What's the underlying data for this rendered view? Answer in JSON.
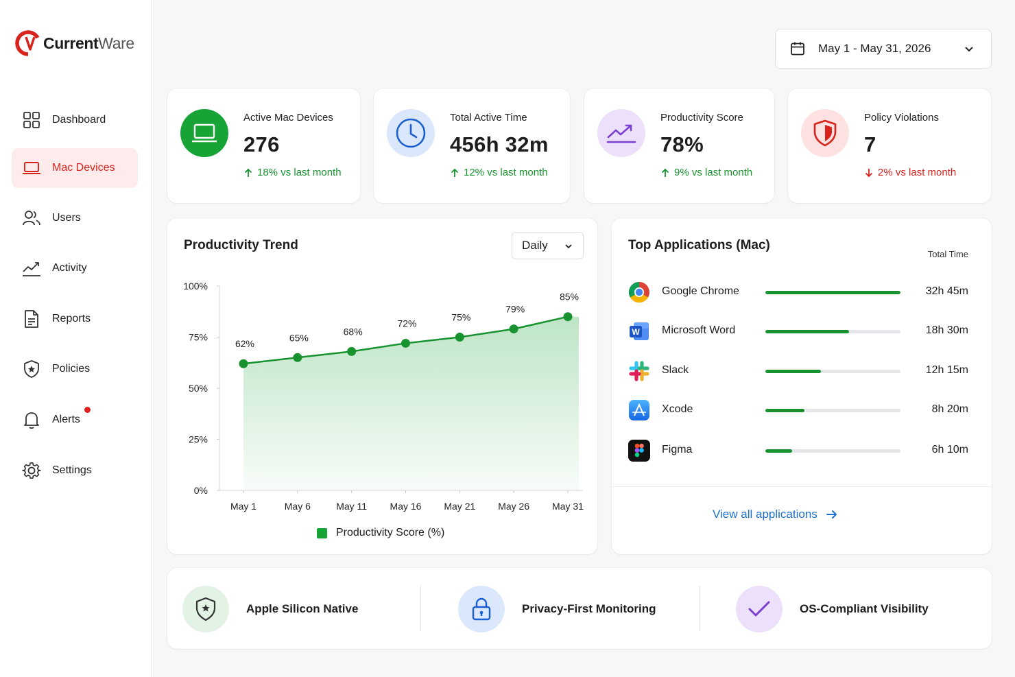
{
  "brand": {
    "name_part1": "Current",
    "name_part2": "Ware",
    "accent": "#d8231c"
  },
  "sidebar": {
    "items": [
      {
        "label": "Dashboard",
        "icon": "grid-icon"
      },
      {
        "label": "Mac Devices",
        "icon": "laptop-icon",
        "active": true
      },
      {
        "label": "Users",
        "icon": "users-icon"
      },
      {
        "label": "Activity",
        "icon": "activity-icon"
      },
      {
        "label": "Reports",
        "icon": "document-icon"
      },
      {
        "label": "Policies",
        "icon": "shield-icon"
      },
      {
        "label": "Alerts",
        "icon": "bell-icon",
        "has_dot": true
      },
      {
        "label": "Settings",
        "icon": "gear-icon"
      }
    ]
  },
  "date_range": {
    "label": "May 1 - May 31, 2026",
    "icon": "calendar-icon"
  },
  "stats": [
    {
      "label": "Active Mac Devices",
      "value": "276",
      "delta": "18% vs last month",
      "trend": "up",
      "icon": "laptop-icon",
      "color": "#17a335"
    },
    {
      "label": "Total Active Time",
      "value": "456h 32m",
      "delta": "12% vs last month",
      "trend": "up",
      "icon": "clock-icon",
      "color": "#1a5fd1"
    },
    {
      "label": "Productivity Score",
      "value": "78%",
      "delta": "9% vs last month",
      "trend": "up",
      "icon": "trend-up-icon",
      "color": "#7a3fd1"
    },
    {
      "label": "Policy Violations",
      "value": "7",
      "delta": "2% vs last month",
      "trend": "down",
      "icon": "shield-icon",
      "color": "#d8231c"
    }
  ],
  "trend": {
    "title": "Productivity Trend",
    "granularity": "Daily",
    "legend": "Productivity Score (%)"
  },
  "chart_data": {
    "type": "area",
    "categories": [
      "May 1",
      "May 6",
      "May 11",
      "May 16",
      "May 21",
      "May 26",
      "May 31"
    ],
    "series": [
      {
        "name": "Productivity Score (%)",
        "values": [
          62,
          65,
          68,
          72,
          75,
          79,
          85
        ]
      }
    ],
    "data_labels": [
      "62%",
      "65%",
      "68%",
      "72%",
      "75%",
      "79%",
      "85%"
    ],
    "y_ticks": [
      "0%",
      "25%",
      "50%",
      "75%",
      "100%"
    ],
    "ylim": [
      0,
      100
    ],
    "color": "#17922e",
    "legend_position": "bottom"
  },
  "apps": {
    "title": "Top Applications (Mac)",
    "column_header": "Total Time",
    "items": [
      {
        "name": "Google Chrome",
        "time": "32h 45m",
        "share": 1.0,
        "icon": "chrome-icon"
      },
      {
        "name": "Microsoft Word",
        "time": "18h 30m",
        "share": 0.62,
        "icon": "word-icon"
      },
      {
        "name": "Slack",
        "time": "12h 15m",
        "share": 0.41,
        "icon": "slack-icon"
      },
      {
        "name": "Xcode",
        "time": "8h 20m",
        "share": 0.29,
        "icon": "xcode-icon"
      },
      {
        "name": "Figma",
        "time": "6h 10m",
        "share": 0.2,
        "icon": "figma-icon"
      }
    ],
    "view_all": "View all applications"
  },
  "features": [
    {
      "label": "Apple Silicon Native",
      "icon": "shield-star-icon"
    },
    {
      "label": "Privacy-First Monitoring",
      "icon": "lock-icon"
    },
    {
      "label": "OS-Compliant Visibility",
      "icon": "checkmark-icon"
    }
  ]
}
